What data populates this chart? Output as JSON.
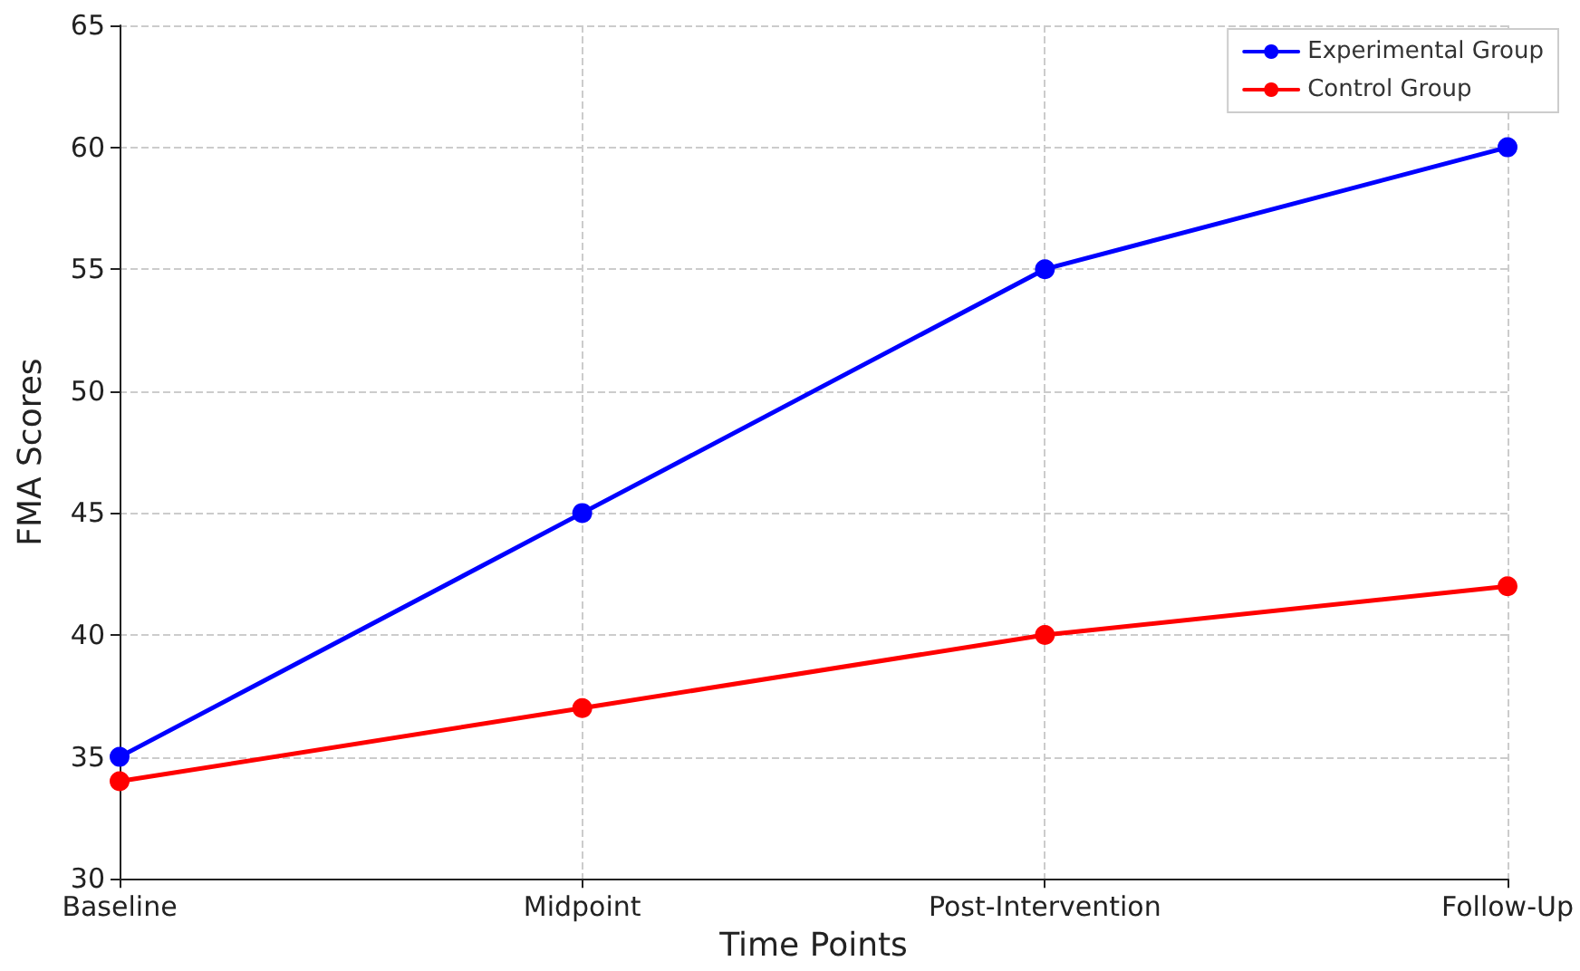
{
  "chart_data": {
    "type": "line",
    "xlabel": "Time Points",
    "ylabel": "FMA Scores",
    "categories": [
      "Baseline",
      "Midpoint",
      "Post-Intervention",
      "Follow-Up"
    ],
    "series": [
      {
        "name": "Experimental Group",
        "color": "#0000ff",
        "values": [
          35,
          45,
          55,
          60
        ]
      },
      {
        "name": "Control Group",
        "color": "#ff0000",
        "values": [
          34,
          37,
          40,
          42
        ]
      }
    ],
    "ylim": [
      30,
      65
    ],
    "yticks": [
      30,
      35,
      40,
      45,
      50,
      55,
      60,
      65
    ],
    "grid": true,
    "legend": "top right",
    "marker": "circle",
    "line_style": "solid"
  }
}
